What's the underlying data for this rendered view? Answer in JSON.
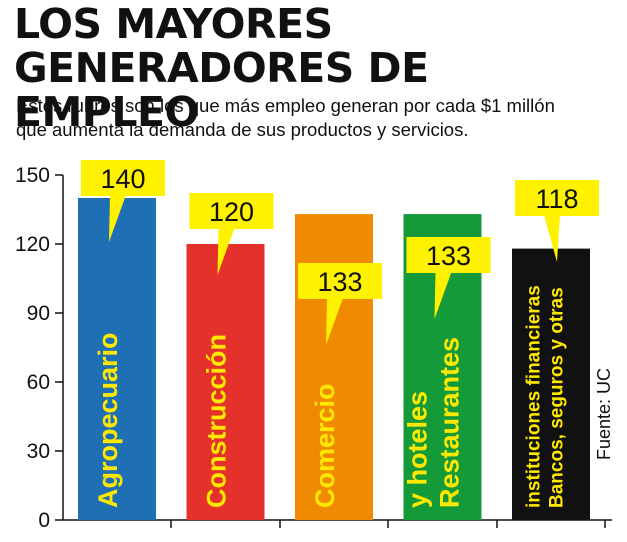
{
  "header": {
    "title_line1": "LOS MAYORES",
    "title_line2": "GENERADORES DE EMPLEO",
    "subtitle_line1": "Estos rubros son los que más empleo generan por cada $1 millón",
    "subtitle_line2": "que aumenta la demanda de sus productos y servicios."
  },
  "source": "Fuente: UC",
  "chart_data": {
    "type": "bar",
    "categories": [
      [
        "Agropecuario"
      ],
      [
        "Construcción"
      ],
      [
        "Comercio"
      ],
      [
        "Restaurantes",
        "y hoteles"
      ],
      [
        "Bancos, seguros y otras",
        "instituciones financieras"
      ]
    ],
    "values": [
      140,
      120,
      133,
      133,
      118
    ],
    "value_labels": [
      "140",
      "120",
      "133",
      "133",
      "118"
    ],
    "bar_colors": [
      "#1f6fb5",
      "#e4312b",
      "#f08a00",
      "#159a3a",
      "#111111"
    ],
    "category_label_color": "#ffe800",
    "callout_color": "#fff200",
    "yticks": [
      0,
      30,
      60,
      90,
      120,
      150
    ],
    "ylim": [
      0,
      150
    ],
    "grid": false,
    "title": "",
    "xlabel": "",
    "ylabel": ""
  }
}
